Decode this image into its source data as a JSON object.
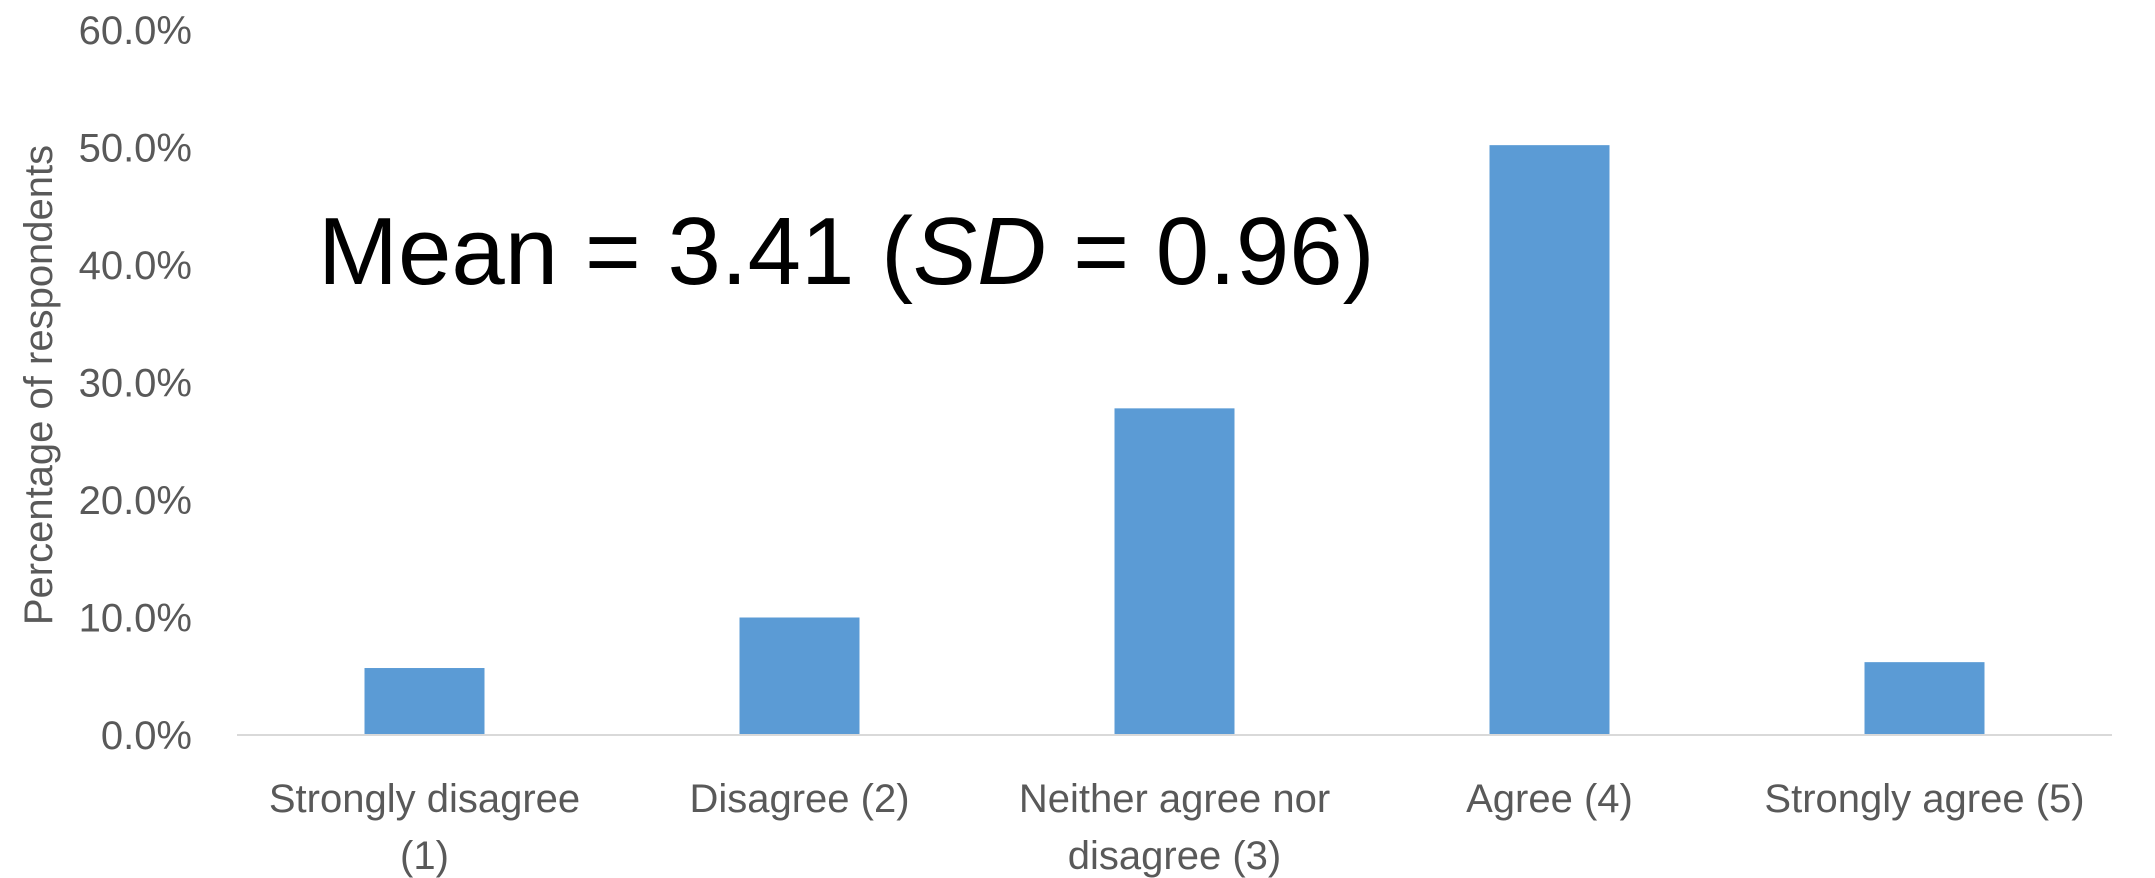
{
  "chart_data": {
    "type": "bar",
    "title": "",
    "xlabel": "",
    "ylabel": "Percentage of respondents",
    "categories": [
      [
        "Strongly disagree",
        "(1)"
      ],
      [
        "Disagree (2)"
      ],
      [
        "Neither agree nor",
        "disagree (3)"
      ],
      [
        "Agree (4)"
      ],
      [
        "Strongly agree (5)"
      ]
    ],
    "values": [
      5.7,
      10.0,
      27.8,
      50.2,
      6.2
    ],
    "ylim": [
      0,
      60
    ],
    "yticks": [
      0,
      10,
      20,
      30,
      40,
      50,
      60
    ],
    "ytick_labels": [
      "0.0%",
      "10.0%",
      "20.0%",
      "30.0%",
      "40.0%",
      "50.0%",
      "60.0%"
    ],
    "grid": false,
    "legend": "none",
    "annotation": {
      "prefix": "Mean = 3.41 (",
      "italic": "SD",
      "suffix": " = 0.96)"
    },
    "colors": {
      "bar": "#5B9BD5",
      "axis": "#D9D9D9",
      "text": "#595959",
      "annotation": "#000000"
    }
  }
}
